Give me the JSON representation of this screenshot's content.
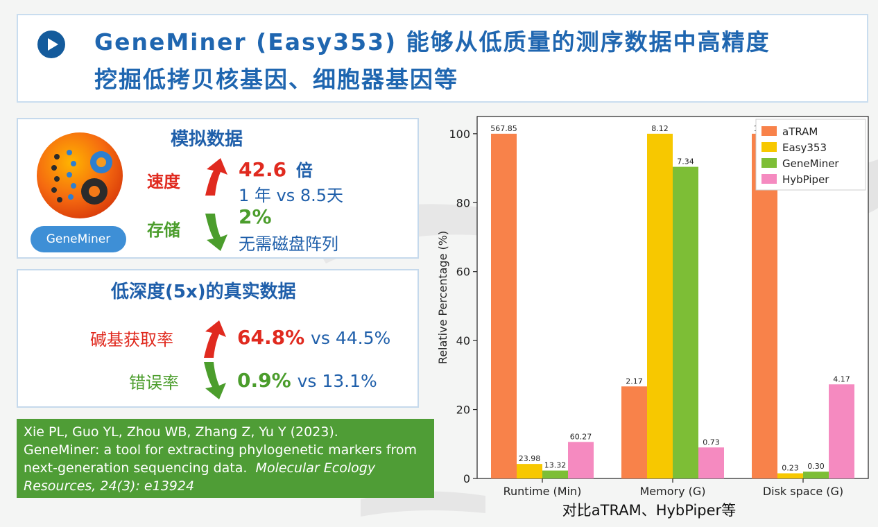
{
  "title": {
    "line1": "GeneMiner (Easy353) 能够从低质量的测序数据中高精度",
    "line2": "挖掘低拷贝核基因、细胞器基因等"
  },
  "sim_panel": {
    "title": "模拟数据",
    "logo_label": "GeneMiner",
    "speed_label": "速度",
    "speed_value": "42.6",
    "speed_unit": "倍",
    "speed_detail": "1 年 vs 8.5天",
    "storage_label": "存储",
    "storage_value": "2%",
    "storage_detail": "无需磁盘阵列"
  },
  "real_panel": {
    "title": "低深度(5x)的真实数据",
    "recovery_label": "碱基获取率",
    "recovery_value": "64.8%",
    "recovery_compare": "vs 44.5%",
    "error_label": "错误率",
    "error_value": "0.9%",
    "error_compare": "vs 13.1%"
  },
  "reference": {
    "authors": "Xie PL, Guo YL, Zhou WB, Zhang Z, Yu Y (2023).",
    "title_line1": "GeneMiner: a tool for extracting phylogenetic markers from",
    "title_line2": "next-generation sequencing data.",
    "journal": "Molecular Ecology",
    "volume": "Resources, 24(3): e13924"
  },
  "caption": "对比aTRAM、HybPiper等",
  "colors": {
    "aTRAM": "#f8824a",
    "Easy353": "#f7c800",
    "GeneMiner": "#7dbe36",
    "HybPiper": "#f58ac0",
    "title_blue": "#1f66b0",
    "red": "#e02a1f",
    "green": "#4b9d2c"
  },
  "chart_data": {
    "type": "bar",
    "categories": [
      "Runtime (Min)",
      "Memory (G)",
      "Disk space (G)"
    ],
    "ylabel": "Relative Percentage (%)",
    "ylim": [
      0,
      105
    ],
    "yticks": [
      0,
      20,
      40,
      60,
      80,
      100
    ],
    "legend_position": "top-right",
    "series": [
      {
        "name": "aTRAM",
        "values": [
          100,
          26.7,
          100
        ],
        "labels": [
          "567.85",
          "2.17",
          "15.26"
        ]
      },
      {
        "name": "Easy353",
        "values": [
          4.2,
          100,
          1.5
        ],
        "labels": [
          "23.98",
          "8.12",
          "0.23"
        ]
      },
      {
        "name": "GeneMiner",
        "values": [
          2.3,
          90.4,
          1.97
        ],
        "labels": [
          "13.32",
          "7.34",
          "0.30"
        ]
      },
      {
        "name": "HybPiper",
        "values": [
          10.6,
          9.0,
          27.3
        ],
        "labels": [
          "60.27",
          "0.73",
          "4.17"
        ]
      }
    ]
  }
}
